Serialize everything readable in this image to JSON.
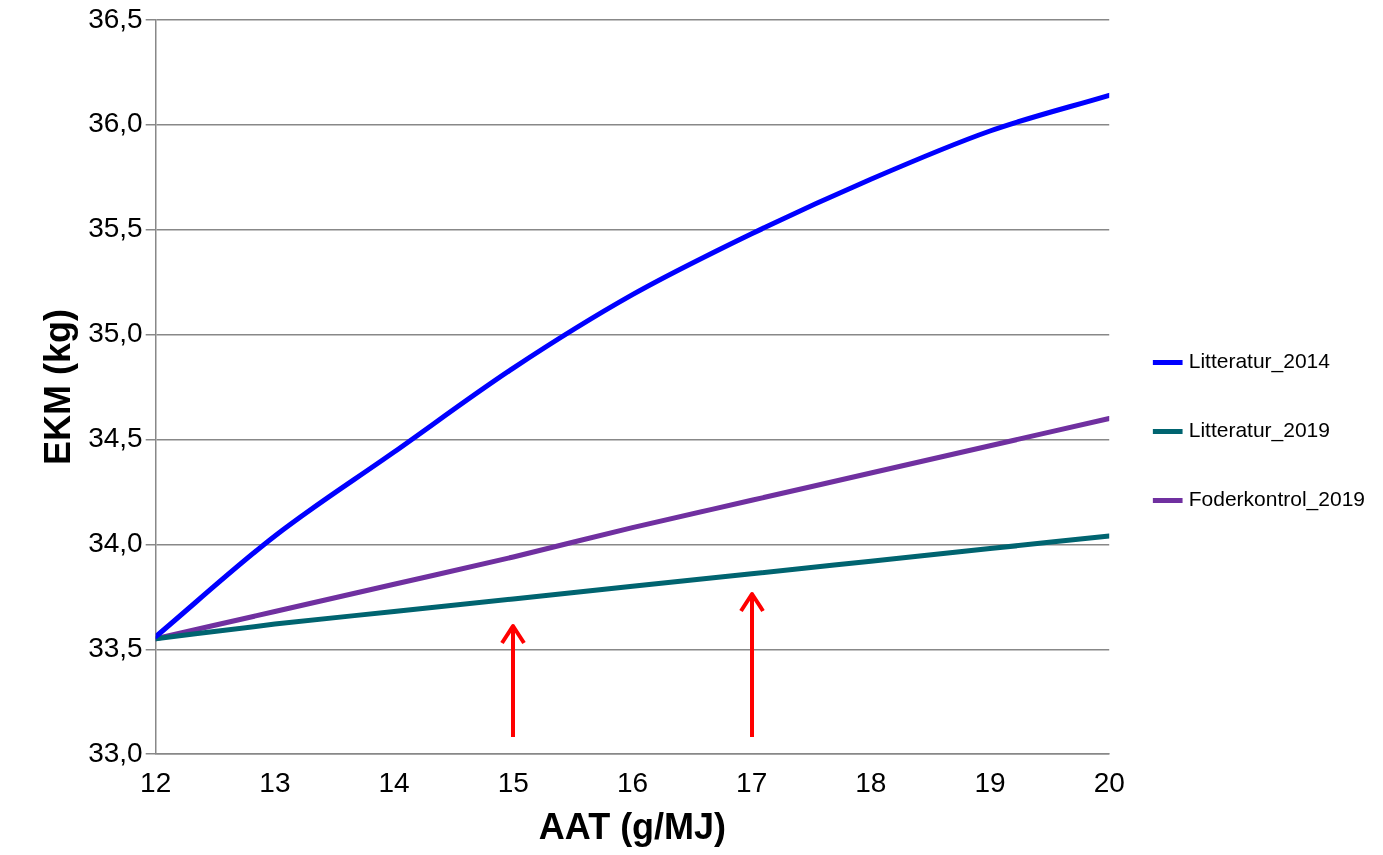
{
  "chart_data": {
    "type": "line",
    "xlabel": "AAT (g/MJ)",
    "ylabel": "EKM (kg)",
    "x": [
      12,
      13,
      14,
      15,
      16,
      17,
      18,
      19,
      20
    ],
    "series": [
      {
        "name": "Litteratur_2014",
        "color": "#0000ff",
        "values": [
          33.56,
          34.04,
          34.44,
          34.84,
          35.19,
          35.48,
          35.74,
          35.97,
          36.14
        ]
      },
      {
        "name": "Litteratur_2019",
        "color": "#006470",
        "values": [
          33.55,
          33.62,
          33.68,
          33.74,
          33.8,
          33.86,
          33.92,
          33.98,
          34.04
        ]
      },
      {
        "name": "Foderkontrol_2019",
        "color": "#7030a0",
        "values": [
          33.55,
          33.68,
          33.81,
          33.94,
          34.08,
          34.21,
          34.34,
          34.47,
          34.6
        ]
      }
    ],
    "xlim": [
      12,
      20
    ],
    "xticks": [
      12,
      13,
      14,
      15,
      16,
      17,
      18,
      19,
      20
    ],
    "ylim": [
      33,
      36.5
    ],
    "yticks": [
      {
        "value": 33,
        "label": "33,0"
      },
      {
        "value": 33.5,
        "label": "33,5"
      },
      {
        "value": 34,
        "label": "34,0"
      },
      {
        "value": 34.5,
        "label": "34,5"
      },
      {
        "value": 35,
        "label": "35,0"
      },
      {
        "value": 35.5,
        "label": "35,5"
      },
      {
        "value": 36,
        "label": "36,0"
      },
      {
        "value": 36.5,
        "label": "36,5"
      }
    ],
    "grid": "y",
    "legend": "right",
    "marker": "none",
    "line_style": "solid"
  }
}
